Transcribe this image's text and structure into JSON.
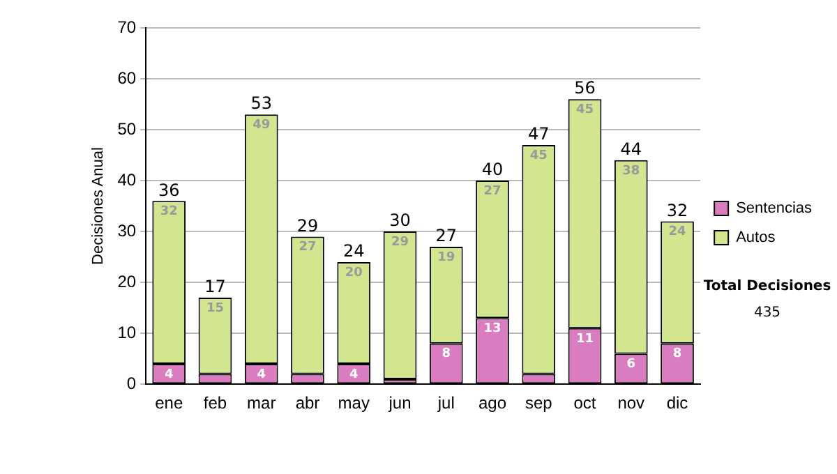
{
  "chart_data": {
    "type": "bar",
    "stacked": true,
    "ylabel": "Decisiones Anual",
    "categories": [
      "ene",
      "feb",
      "mar",
      "abr",
      "may",
      "jun",
      "jul",
      "ago",
      "sep",
      "oct",
      "nov",
      "dic"
    ],
    "series": [
      {
        "name": "Sentencias",
        "color": "#d97cc0",
        "values": [
          4,
          2,
          4,
          2,
          4,
          1,
          8,
          13,
          2,
          11,
          6,
          8
        ],
        "value_labels": [
          "4",
          null,
          "4",
          null,
          "4",
          null,
          "8",
          "13",
          null,
          "11",
          "6",
          "8"
        ]
      },
      {
        "name": "Autos",
        "color": "#d2e68f",
        "values": [
          32,
          15,
          49,
          27,
          20,
          29,
          19,
          27,
          45,
          45,
          38,
          24
        ],
        "value_labels": [
          "32",
          "15",
          "49",
          "27",
          "20",
          "29",
          "19",
          "27",
          "45",
          "45",
          "38",
          "24"
        ]
      }
    ],
    "totals": [
      "36",
      "17",
      "53",
      "29",
      "24",
      "30",
      "27",
      "40",
      "47",
      "56",
      "44",
      "32"
    ],
    "ylim": [
      0,
      70
    ],
    "yticks": [
      0,
      10,
      20,
      30,
      40,
      50,
      60,
      70
    ],
    "grid": "y",
    "legend": "right",
    "annotations": [
      "Total Decisiones",
      "435"
    ]
  }
}
